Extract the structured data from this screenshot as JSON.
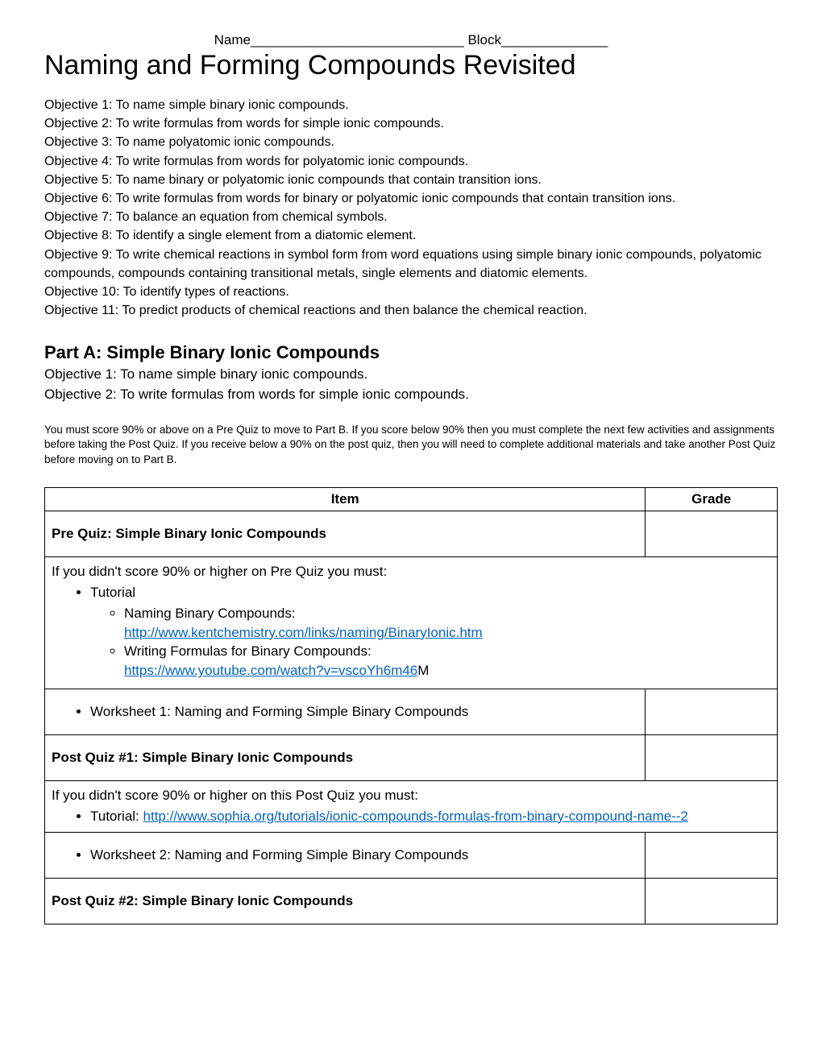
{
  "header_name_label": "Name",
  "header_name_line": "____________________________",
  "header_block_label": "Block",
  "header_block_line": "______________",
  "title": "Naming and Forming Compounds Revisited",
  "objectives": [
    "Objective 1: To name simple binary ionic compounds.",
    "Objective 2: To write formulas from words for simple ionic compounds.",
    "Objective 3: To name polyatomic ionic compounds.",
    "Objective 4: To write formulas from words for polyatomic ionic compounds.",
    "Objective 5: To name binary or polyatomic ionic compounds that contain transition ions.",
    "Objective 6: To write formulas from words for binary or polyatomic ionic compounds that contain transition ions.",
    "Objective 7:  To balance an equation from chemical symbols.",
    "Objective 8: To identify a single element from a diatomic element.",
    "Objective 9:  To write chemical reactions in symbol form from word equations using simple binary ionic compounds, polyatomic compounds, compounds containing transitional metals, single elements and diatomic elements.",
    "Objective 10:  To identify types of reactions.",
    "Objective 11:  To predict products of chemical reactions and then balance the chemical reaction."
  ],
  "partA": {
    "title": "Part A: Simple Binary Ionic Compounds",
    "obj1": "Objective 1: To name simple binary ionic compounds.",
    "obj2": "Objective 2: To write formulas from words for simple ionic compounds.",
    "instructions": "You must score 90% or above on a Pre Quiz to move to Part B.  If you score below 90% then you must complete the next few activities and assignments before taking the Post Quiz.  If you receive below a 90% on the post quiz, then you will need to complete additional materials and take another Post Quiz before moving on to Part B."
  },
  "table": {
    "header_item": "Item",
    "header_grade": "Grade",
    "prequiz": "Pre Quiz:  Simple Binary Ionic Compounds",
    "row2_intro": "If you didn't score 90% or higher on Pre Quiz you must:",
    "row2_tutorial": "Tutorial",
    "row2_naming": "Naming Binary Compounds:",
    "row2_link1": "http://www.kentchemistry.com/links/naming/BinaryIonic.htm",
    "row2_writing": "Writing Formulas for Binary Compounds:",
    "row2_link2_pre": "https://www.youtube.com/watch?v=vscoYh6m46",
    "row2_link2_suffix": "M",
    "worksheet1": "Worksheet 1:  Naming and Forming Simple Binary Compounds",
    "postquiz1": "Post Quiz #1:  Simple Binary Ionic Compounds",
    "row5_intro": "If you didn't score 90% or higher on this Post Quiz you must:",
    "row5_tutorial": "Tutorial:  ",
    "row5_link": "http://www.sophia.org/tutorials/ionic-compounds-formulas-from-binary-compound-name--2",
    "worksheet2": "Worksheet 2:  Naming and Forming Simple Binary Compounds",
    "postquiz2": "Post Quiz #2:  Simple Binary Ionic Compounds"
  }
}
